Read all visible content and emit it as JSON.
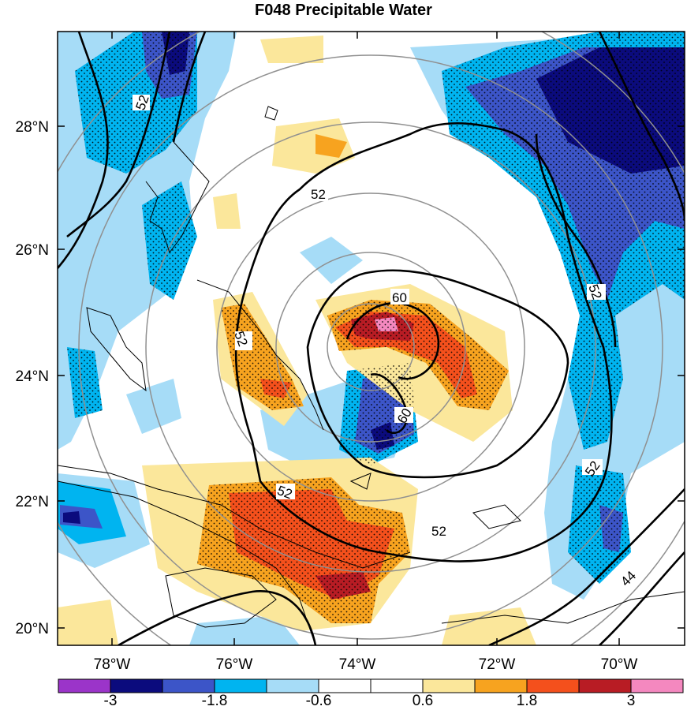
{
  "title": "F048 Precipitable Water",
  "lat_labels": [
    "28°N",
    "26°N",
    "24°N",
    "22°N",
    "20°N"
  ],
  "lon_labels": [
    "78°W",
    "76°W",
    "74°W",
    "72°W",
    "70°W"
  ],
  "colorbar": {
    "labels": [
      "-3",
      "-1.8",
      "-0.6",
      "0.6",
      "1.8",
      "3"
    ],
    "colors": [
      "#9b34c9",
      "#0b0b7d",
      "#3c55c8",
      "#00b4f0",
      "#a6dcf7",
      "#ffffff",
      "#ffffff",
      "#fbe79b",
      "#f7a31f",
      "#f4501c",
      "#b81c24",
      "#f488bf"
    ]
  },
  "contour_labels": [
    "52",
    "52",
    "52",
    "52",
    "52",
    "52",
    "60",
    "60",
    "52",
    "44"
  ],
  "shading_colors": {
    "light_blue": "#a6dcf7",
    "cyan": "#00b4f0",
    "mid_blue": "#3c55c8",
    "dark_blue": "#0b0b7d",
    "yellow": "#fbe79b",
    "orange": "#f7a31f",
    "red": "#f4501c",
    "dark_red": "#b81c24",
    "pink": "#f488bf"
  }
}
